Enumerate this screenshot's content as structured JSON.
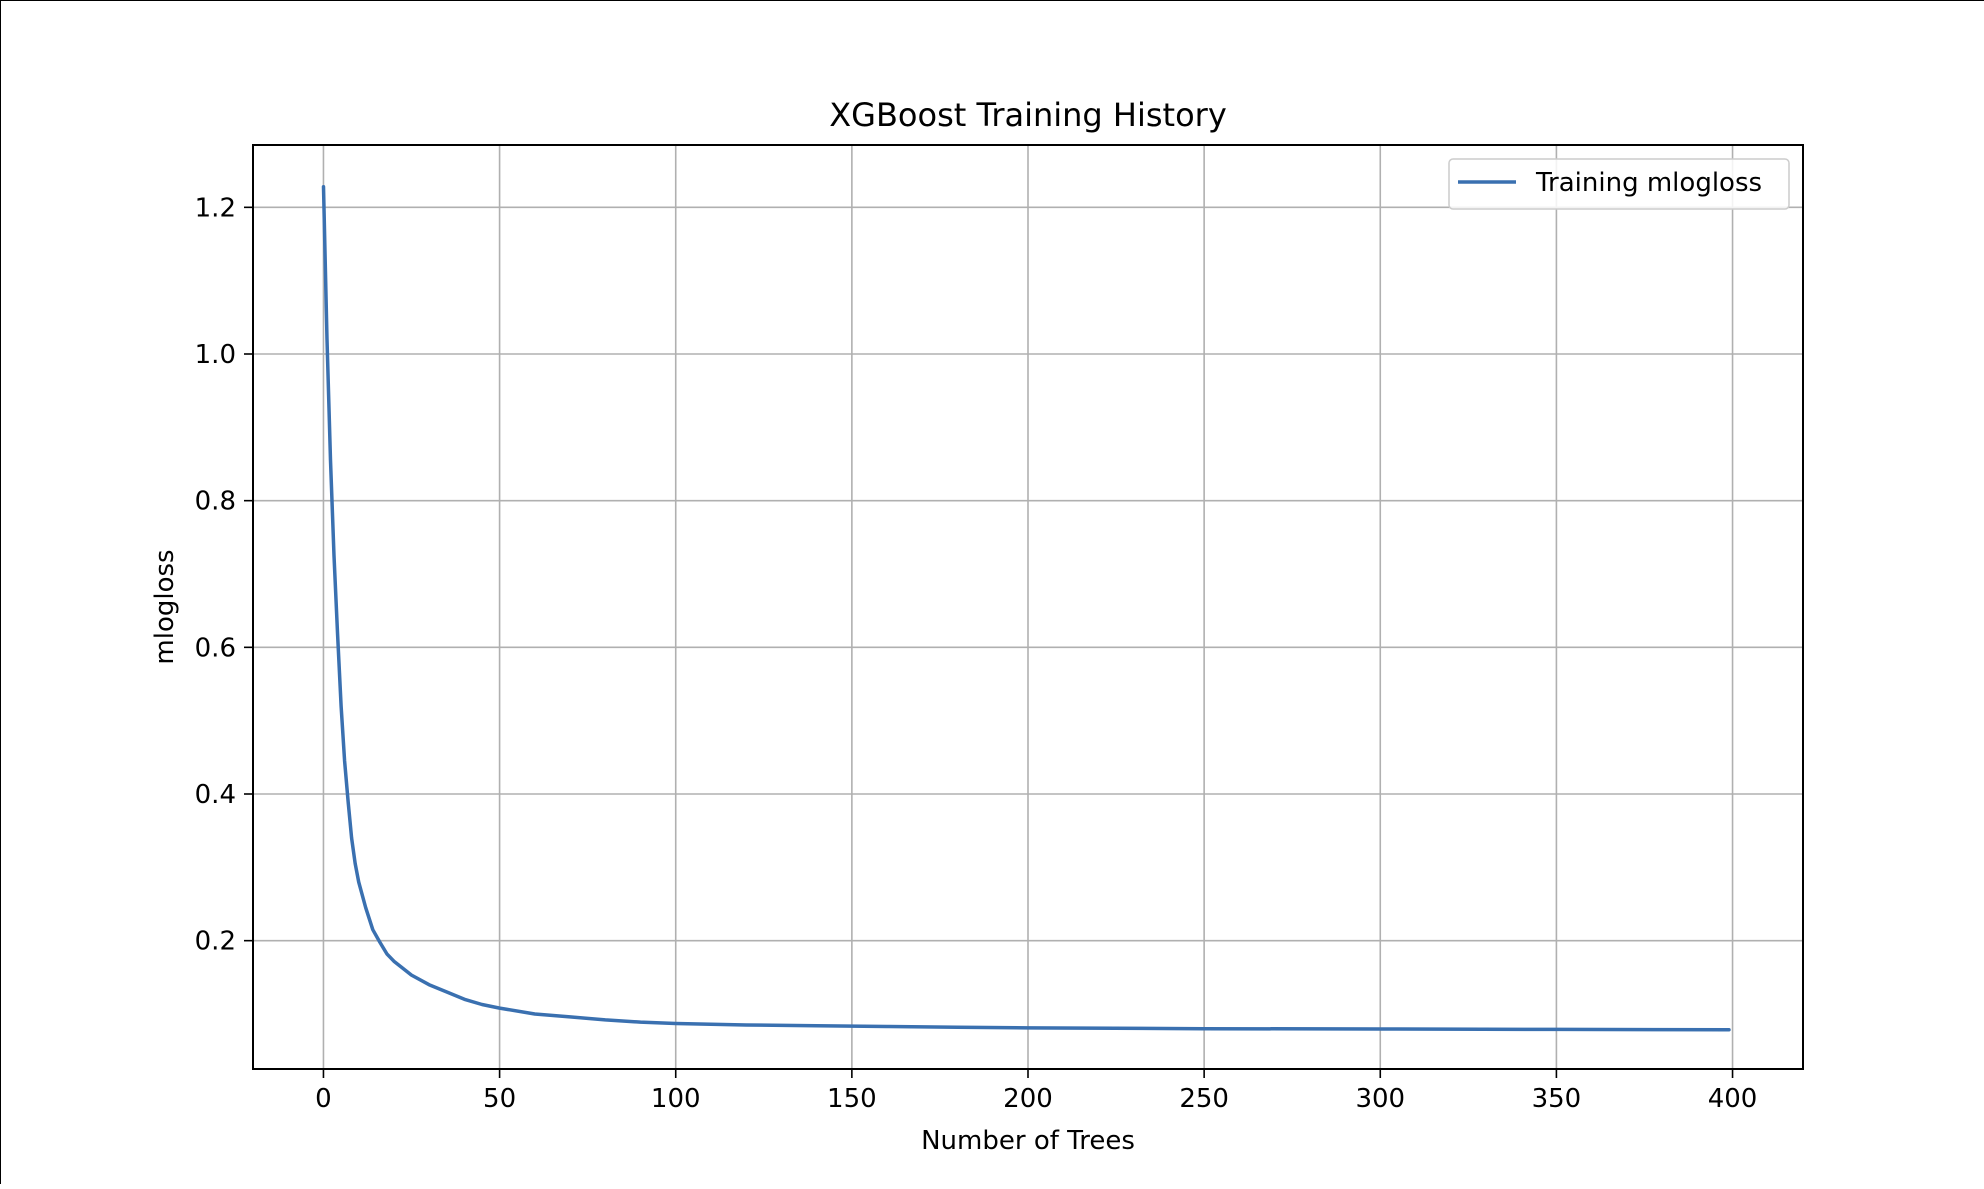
{
  "chart_data": {
    "type": "line",
    "title": "XGBoost Training History",
    "xlabel": "Number of Trees",
    "ylabel": "mlogloss",
    "xlim": [
      -20,
      420
    ],
    "ylim": [
      0.025,
      1.285
    ],
    "xticks": [
      0,
      50,
      100,
      150,
      200,
      250,
      300,
      350,
      400
    ],
    "yticks": [
      0.2,
      0.4,
      0.6,
      0.8,
      1.0,
      1.2
    ],
    "xtick_labels": [
      "0",
      "50",
      "100",
      "150",
      "200",
      "250",
      "300",
      "350",
      "400"
    ],
    "ytick_labels": [
      "0.2",
      "0.4",
      "0.6",
      "0.8",
      "1.0",
      "1.2"
    ],
    "grid": true,
    "legend_position": "top-right",
    "series": [
      {
        "name": "Training mlogloss",
        "color": "#3a70b0",
        "x": [
          0,
          1,
          2,
          3,
          4,
          5,
          6,
          7,
          8,
          9,
          10,
          12,
          14,
          16,
          18,
          20,
          25,
          30,
          35,
          40,
          45,
          50,
          60,
          70,
          80,
          90,
          100,
          120,
          140,
          160,
          180,
          200,
          250,
          300,
          350,
          399
        ],
        "y": [
          1.228,
          1.02,
          0.855,
          0.725,
          0.62,
          0.52,
          0.445,
          0.39,
          0.34,
          0.305,
          0.28,
          0.245,
          0.215,
          0.198,
          0.182,
          0.172,
          0.153,
          0.14,
          0.13,
          0.12,
          0.113,
          0.108,
          0.1,
          0.096,
          0.092,
          0.089,
          0.087,
          0.085,
          0.084,
          0.083,
          0.082,
          0.081,
          0.08,
          0.0795,
          0.079,
          0.0785
        ]
      }
    ]
  }
}
